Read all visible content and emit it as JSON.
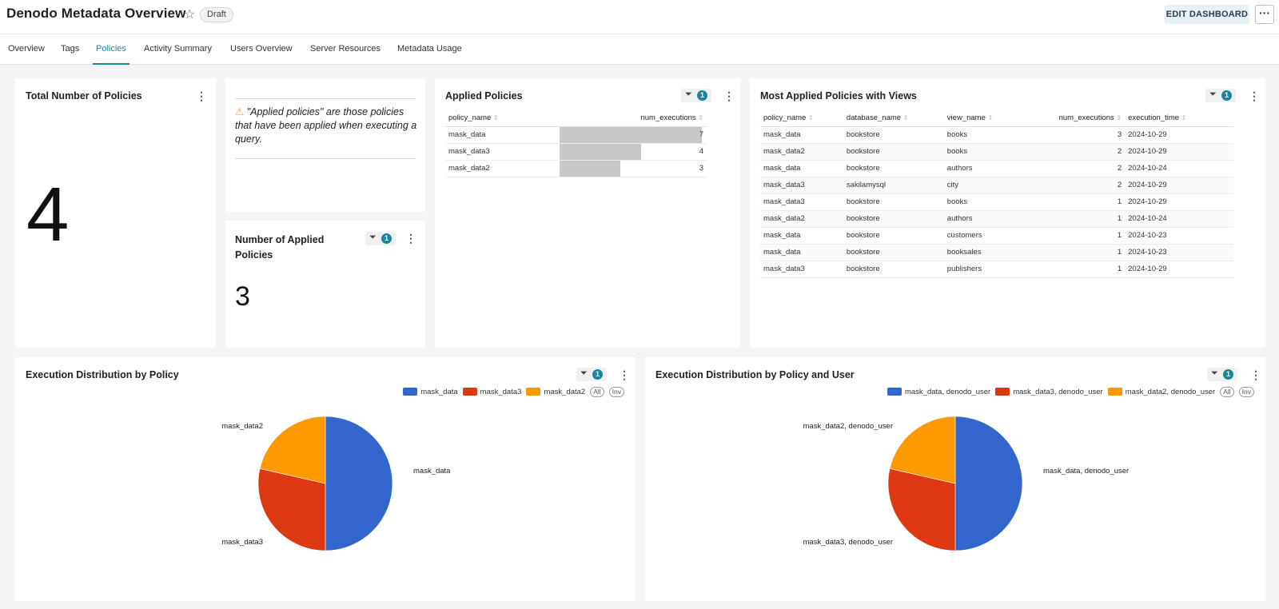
{
  "header": {
    "title": "Denodo Metadata Overview",
    "status_badge": "Draft",
    "edit_button": "EDIT DASHBOARD",
    "more_button": "···"
  },
  "tabs": [
    "Overview",
    "Tags",
    "Policies",
    "Activity Summary",
    "Users Overview",
    "Server Resources",
    "Metadata Usage"
  ],
  "active_tab": "Policies",
  "total_card": {
    "title": "Total Number of Policies",
    "value": "4"
  },
  "note_card": {
    "warning_icon": "⚠",
    "text": "\"Applied policies\" are those policies that have been applied when executing a query."
  },
  "applied_count_card": {
    "title": "Number of Applied Policies",
    "filter_count": "1",
    "value": "3"
  },
  "applied_policies": {
    "title": "Applied Policies",
    "filter_count": "1",
    "columns": [
      "policy_name",
      "num_executions"
    ],
    "rows": [
      {
        "policy_name": "mask_data",
        "num_executions": "7",
        "fraction": 1.0
      },
      {
        "policy_name": "mask_data3",
        "num_executions": "4",
        "fraction": 0.571
      },
      {
        "policy_name": "mask_data2",
        "num_executions": "3",
        "fraction": 0.429
      }
    ]
  },
  "most_applied": {
    "title": "Most Applied Policies with Views",
    "filter_count": "1",
    "columns": [
      "policy_name",
      "database_name",
      "view_name",
      "num_executions",
      "execution_time"
    ],
    "rows": [
      [
        "mask_data",
        "bookstore",
        "books",
        "3",
        "2024-10-29"
      ],
      [
        "mask_data2",
        "bookstore",
        "books",
        "2",
        "2024-10-29"
      ],
      [
        "mask_data",
        "bookstore",
        "authors",
        "2",
        "2024-10-24"
      ],
      [
        "mask_data3",
        "sakilamysql",
        "city",
        "2",
        "2024-10-29"
      ],
      [
        "mask_data3",
        "bookstore",
        "books",
        "1",
        "2024-10-29"
      ],
      [
        "mask_data2",
        "bookstore",
        "authors",
        "1",
        "2024-10-24"
      ],
      [
        "mask_data",
        "bookstore",
        "customers",
        "1",
        "2024-10-23"
      ],
      [
        "mask_data",
        "bookstore",
        "booksales",
        "1",
        "2024-10-23"
      ],
      [
        "mask_data3",
        "bookstore",
        "publishers",
        "1",
        "2024-10-29"
      ]
    ]
  },
  "dist_policy": {
    "title": "Execution Distribution by Policy",
    "filter_count": "1",
    "legend_all": "All",
    "legend_inv": "Inv"
  },
  "dist_policy_user": {
    "title": "Execution Distribution by Policy and User",
    "filter_count": "1",
    "legend_all": "All",
    "legend_inv": "Inv"
  },
  "chart_data": [
    {
      "type": "pie",
      "title": "Execution Distribution by Policy",
      "categories": [
        "mask_data",
        "mask_data3",
        "mask_data2"
      ],
      "values": [
        7,
        4,
        3
      ],
      "colors": [
        "#3366cc",
        "#dc3912",
        "#ff9900"
      ],
      "legend": "top-right"
    },
    {
      "type": "pie",
      "title": "Execution Distribution by Policy and User",
      "categories": [
        "mask_data, denodo_user",
        "mask_data3, denodo_user",
        "mask_data2, denodo_user"
      ],
      "values": [
        7,
        4,
        3
      ],
      "colors": [
        "#3366cc",
        "#dc3912",
        "#ff9900"
      ],
      "legend": "top-right"
    }
  ]
}
